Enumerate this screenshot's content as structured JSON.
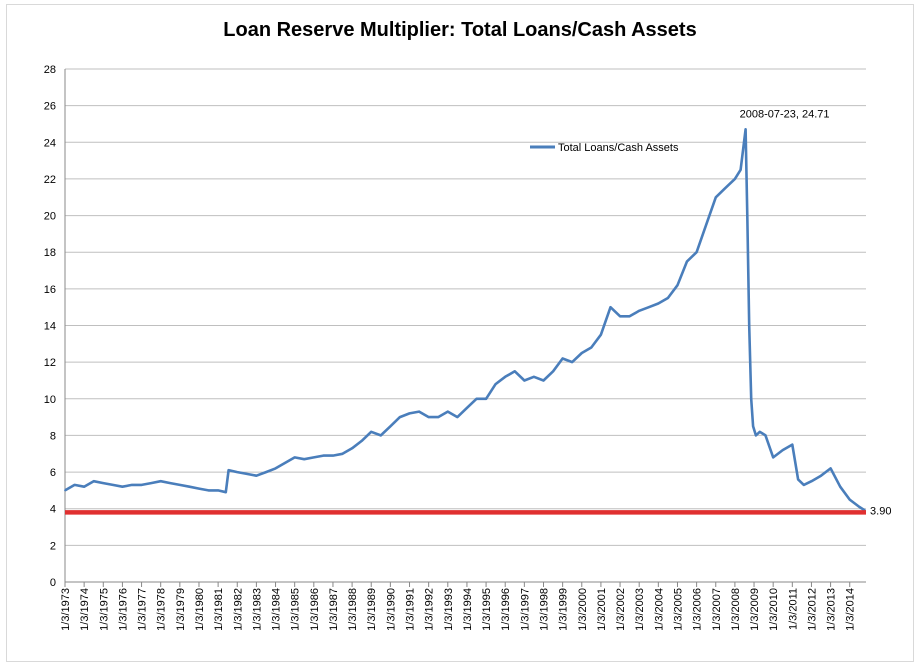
{
  "chart_data": {
    "type": "line",
    "title": "Loan Reserve Multiplier: Total Loans/Cash Assets",
    "xlabel": "",
    "ylabel": "",
    "ylim": [
      0,
      28
    ],
    "y_ticks": [
      "0",
      "2",
      "4",
      "6",
      "8",
      "10",
      "12",
      "14",
      "16",
      "18",
      "20",
      "22",
      "24",
      "26",
      "28"
    ],
    "x_tick_labels": [
      "1/3/1973",
      "1/3/1974",
      "1/3/1975",
      "1/3/1976",
      "1/3/1977",
      "1/3/1978",
      "1/3/1979",
      "1/3/1980",
      "1/3/1981",
      "1/3/1982",
      "1/3/1983",
      "1/3/1984",
      "1/3/1985",
      "1/3/1986",
      "1/3/1987",
      "1/3/1988",
      "1/3/1989",
      "1/3/1990",
      "1/3/1991",
      "1/3/1992",
      "1/3/1993",
      "1/3/1994",
      "1/3/1995",
      "1/3/1996",
      "1/3/1997",
      "1/3/1998",
      "1/3/1999",
      "1/3/2000",
      "1/3/2001",
      "1/3/2002",
      "1/3/2003",
      "1/3/2004",
      "1/3/2005",
      "1/3/2006",
      "1/3/2007",
      "1/3/2008",
      "1/3/2009",
      "1/3/2010",
      "1/3/2011",
      "1/3/2012",
      "1/3/2013",
      "1/3/2014"
    ],
    "grid": true,
    "legend_position": "top-right",
    "series": [
      {
        "name": "Total Loans/Cash Assets",
        "color": "#4a7ebb",
        "x": [
          1973.0,
          1973.5,
          1974.0,
          1974.5,
          1975.0,
          1975.5,
          1976.0,
          1976.5,
          1977.0,
          1977.5,
          1978.0,
          1978.5,
          1979.0,
          1979.5,
          1980.0,
          1980.5,
          1981.0,
          1981.4,
          1981.55,
          1982.0,
          1982.5,
          1983.0,
          1983.5,
          1984.0,
          1984.5,
          1985.0,
          1985.5,
          1986.0,
          1986.5,
          1987.0,
          1987.5,
          1988.0,
          1988.5,
          1989.0,
          1989.5,
          1990.0,
          1990.5,
          1991.0,
          1991.5,
          1992.0,
          1992.5,
          1993.0,
          1993.5,
          1994.0,
          1994.5,
          1995.0,
          1995.5,
          1996.0,
          1996.5,
          1997.0,
          1997.5,
          1998.0,
          1998.5,
          1999.0,
          1999.5,
          2000.0,
          2000.5,
          2001.0,
          2001.5,
          2002.0,
          2002.5,
          2003.0,
          2003.5,
          2004.0,
          2004.5,
          2005.0,
          2005.5,
          2006.0,
          2006.5,
          2007.0,
          2007.5,
          2008.0,
          2008.3,
          2008.56,
          2008.65,
          2008.75,
          2008.85,
          2008.95,
          2009.1,
          2009.3,
          2009.6,
          2010.0,
          2010.5,
          2011.0,
          2011.3,
          2011.6,
          2012.0,
          2012.5,
          2013.0,
          2013.5,
          2014.0,
          2014.5,
          2014.8
        ],
        "values": [
          5.0,
          5.3,
          5.2,
          5.5,
          5.4,
          5.3,
          5.2,
          5.3,
          5.3,
          5.4,
          5.5,
          5.4,
          5.3,
          5.2,
          5.1,
          5.0,
          5.0,
          4.9,
          6.1,
          6.0,
          5.9,
          5.8,
          6.0,
          6.2,
          6.5,
          6.8,
          6.7,
          6.8,
          6.9,
          6.9,
          7.0,
          7.3,
          7.7,
          8.2,
          8.0,
          8.5,
          9.0,
          9.2,
          9.3,
          9.0,
          9.0,
          9.3,
          9.0,
          9.5,
          10.0,
          10.0,
          10.8,
          11.2,
          11.5,
          11.0,
          11.2,
          11.0,
          11.5,
          12.2,
          12.0,
          12.5,
          12.8,
          13.5,
          15.0,
          14.5,
          14.5,
          14.8,
          15.0,
          15.2,
          15.5,
          16.2,
          17.5,
          18.0,
          19.5,
          21.0,
          21.5,
          22.0,
          22.5,
          24.71,
          20.0,
          14.0,
          10.0,
          8.5,
          8.0,
          8.2,
          8.0,
          6.8,
          7.2,
          7.5,
          5.6,
          5.3,
          5.5,
          5.8,
          6.2,
          5.2,
          4.5,
          4.1,
          3.9
        ]
      }
    ],
    "reference_line": {
      "value": 3.8,
      "color": "#e03030"
    },
    "annotations": [
      {
        "text": "2008-07-23, 24.71",
        "x": 2008.56,
        "y": 24.71
      },
      {
        "text": "3.90",
        "x": 2014.8,
        "y": 3.9
      }
    ]
  }
}
